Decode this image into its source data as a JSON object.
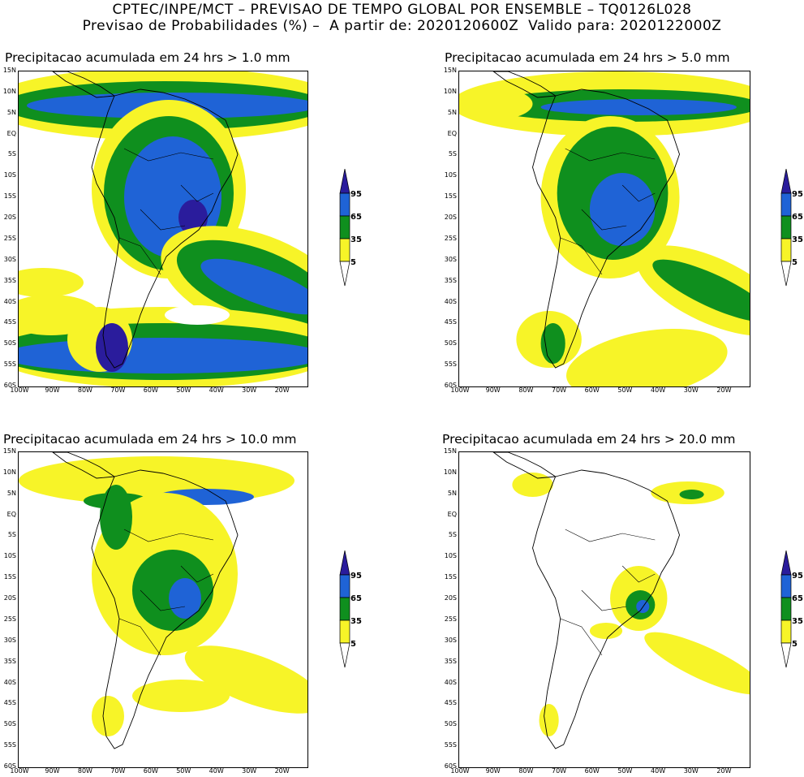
{
  "header": {
    "line1": "CPTEC/INPE/MCT – PREVISAO DE TEMPO GLOBAL POR ENSEMBLE – TQ0126L028",
    "line2": "Previsao de Probabilidades (%) –  A partir de: 2020120600Z  Valido para: 2020122000Z"
  },
  "axes": {
    "lat_labels": [
      "15N",
      "10N",
      "5N",
      "EQ",
      "5S",
      "10S",
      "15S",
      "20S",
      "25S",
      "30S",
      "35S",
      "40S",
      "45S",
      "50S",
      "55S",
      "60S"
    ],
    "lon_labels": [
      "100W",
      "90W",
      "80W",
      "70W",
      "60W",
      "50W",
      "40W",
      "30W",
      "20W"
    ]
  },
  "legend": {
    "levels": [
      "95",
      "65",
      "35",
      "5"
    ],
    "colors": [
      "#2a1c9c",
      "#1f63d6",
      "#0f8f1e",
      "#f7f428",
      "#ffffff"
    ]
  },
  "panels": [
    {
      "title": "Precipitacao acumulada em 24 hrs > 1.0 mm",
      "threshold": "1.0 mm"
    },
    {
      "title": "Precipitacao acumulada em 24 hrs > 5.0 mm",
      "threshold": "5.0 mm"
    },
    {
      "title": "Precipitacao acumulada em 24 hrs > 10.0 mm",
      "threshold": "10.0 mm"
    },
    {
      "title": "Precipitacao acumulada em 24 hrs > 20.0 mm",
      "threshold": "20.0 mm"
    }
  ]
}
